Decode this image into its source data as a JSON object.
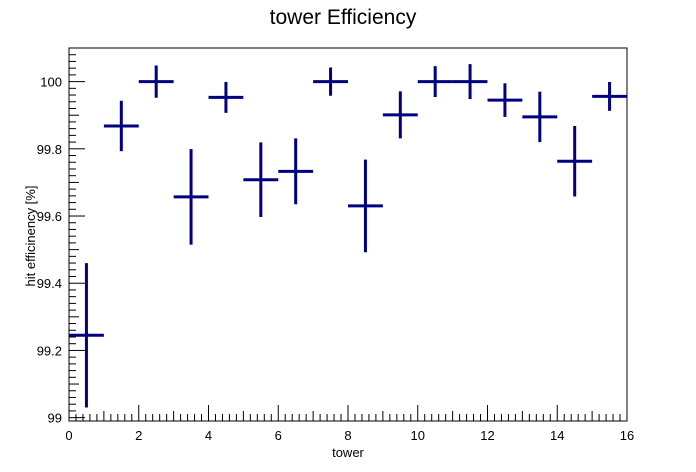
{
  "chart_data": {
    "type": "scatter",
    "title": "tower Efficiency",
    "xlabel": "tower",
    "ylabel": "hit efficinency [%]",
    "xlim": [
      0,
      16
    ],
    "ylim": [
      98.99,
      100.1
    ],
    "x_ticks": [
      "0",
      "2",
      "4",
      "6",
      "8",
      "10",
      "12",
      "14",
      "16"
    ],
    "y_ticks": [
      "99",
      "99.2",
      "99.4",
      "99.6",
      "99.8",
      "100"
    ],
    "color": "#000080",
    "grid": false,
    "series": [
      {
        "x": [
          0.5,
          1.5,
          2.5,
          3.5,
          4.5,
          5.5,
          6.5,
          7.5,
          8.5,
          9.5,
          10.5,
          11.5,
          12.5,
          13.5,
          14.5,
          15.5
        ],
        "y": [
          99.245,
          99.868,
          100.0,
          99.657,
          99.953,
          99.708,
          99.733,
          100.0,
          99.63,
          99.901,
          100.0,
          100.0,
          99.945,
          99.895,
          99.763,
          99.956
        ],
        "y_err": [
          0.215,
          0.075,
          0.048,
          0.142,
          0.046,
          0.111,
          0.098,
          0.042,
          0.138,
          0.07,
          0.046,
          0.052,
          0.05,
          0.075,
          0.105,
          0.043
        ],
        "x_err": [
          0.5,
          0.5,
          0.5,
          0.5,
          0.5,
          0.5,
          0.5,
          0.5,
          0.5,
          0.5,
          0.5,
          0.5,
          0.5,
          0.5,
          0.5,
          0.5
        ]
      }
    ]
  }
}
